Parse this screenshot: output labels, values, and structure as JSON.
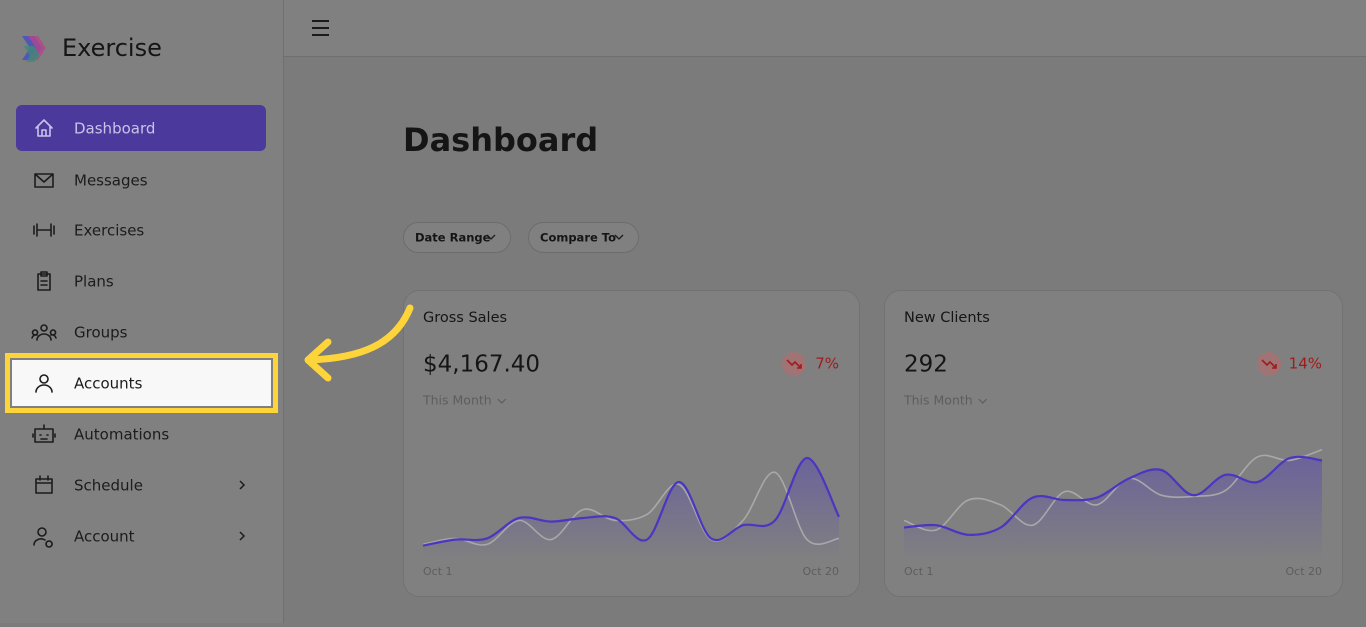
{
  "app": {
    "name": "Exercise"
  },
  "nav": [
    {
      "label": "Dashboard",
      "active": true
    },
    {
      "label": "Messages"
    },
    {
      "label": "Exercises"
    },
    {
      "label": "Plans"
    },
    {
      "label": "Groups"
    },
    {
      "label": "Accounts",
      "highlighted": true
    },
    {
      "label": "Automations"
    },
    {
      "label": "Schedule",
      "submenu": true
    },
    {
      "label": "Account",
      "submenu": true
    }
  ],
  "page": {
    "title": "Dashboard",
    "filters": [
      "Date Range",
      "Compare To"
    ]
  },
  "cards": [
    {
      "title": "Gross Sales",
      "value": "$4,167.40",
      "change": "7%",
      "period": "This Month",
      "x_start": "Oct 1",
      "x_end": "Oct 20",
      "ylim": [
        0,
        100
      ],
      "current": {
        "color": "#4a36c0",
        "values": [
          12,
          17,
          18,
          35,
          32,
          35,
          35,
          17,
          65,
          18,
          29,
          33,
          85,
          36
        ]
      },
      "previous": {
        "color": "#a8a8a8",
        "values": [
          13,
          18,
          13,
          33,
          17,
          42,
          33,
          38,
          63,
          17,
          33,
          73,
          17,
          18
        ]
      }
    },
    {
      "title": "New Clients",
      "value": "292",
      "change": "14%",
      "period": "This Month",
      "x_start": "Oct 1",
      "x_end": "Oct 20",
      "ylim": [
        0,
        100
      ],
      "current": {
        "color": "#4a36c0",
        "values": [
          27,
          29,
          21,
          27,
          52,
          50,
          52,
          68,
          75,
          54,
          71,
          65,
          85,
          83
        ]
      },
      "previous": {
        "color": "#a8a8a8",
        "values": [
          33,
          25,
          50,
          46,
          29,
          57,
          46,
          68,
          54,
          53,
          58,
          86,
          83,
          92
        ]
      }
    }
  ]
}
